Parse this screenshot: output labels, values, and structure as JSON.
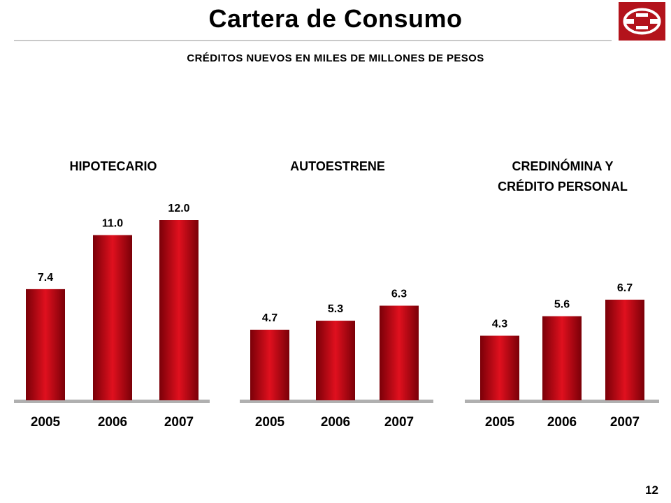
{
  "header": {
    "title": "Cartera de Consumo",
    "subtitle": "CRÉDITOS NUEVOS EN MILES DE MILLONES DE PESOS",
    "page_number": "12",
    "logo_icon": "bank-logo-icon"
  },
  "colors": {
    "bar_dark": "#7a0008",
    "bar_mid": "#e0101e",
    "axis": "#b0b0b0",
    "logo": "#b3131b"
  },
  "chart_data": [
    {
      "type": "bar",
      "title": "HIPOTECARIO",
      "categories": [
        "2005",
        "2006",
        "2007"
      ],
      "values": [
        7.4,
        11.0,
        12.0
      ],
      "value_labels": [
        "7.4",
        "11.0",
        "12.0"
      ]
    },
    {
      "type": "bar",
      "title": "AUTOESTRENE",
      "categories": [
        "2005",
        "2006",
        "2007"
      ],
      "values": [
        4.7,
        5.3,
        6.3
      ],
      "value_labels": [
        "4.7",
        "5.3",
        "6.3"
      ]
    },
    {
      "type": "bar",
      "title": "CREDINÓMINA Y CRÉDITO PERSONAL",
      "title_lines": [
        "CREDINÓMINA Y",
        "CRÉDITO PERSONAL"
      ],
      "categories": [
        "2005",
        "2006",
        "2007"
      ],
      "values": [
        4.3,
        5.6,
        6.7
      ],
      "value_labels": [
        "4.3",
        "5.6",
        "6.7"
      ]
    }
  ]
}
